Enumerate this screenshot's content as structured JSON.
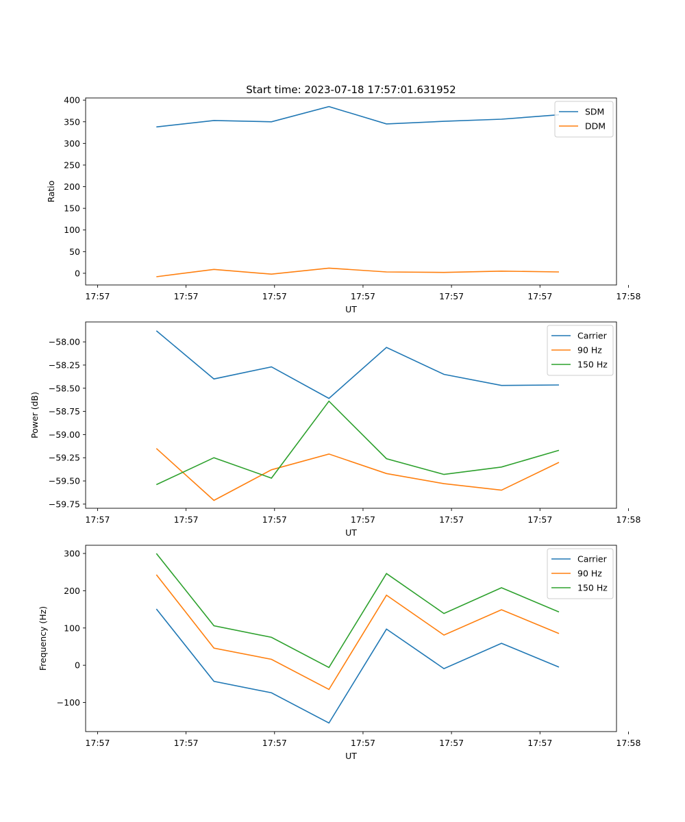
{
  "figure_title": "Start time: 2023-07-18 17:57:01.631952",
  "chart_data": [
    {
      "type": "line",
      "title": "Start time: 2023-07-18 17:57:01.631952",
      "xlabel": "UT",
      "ylabel": "Ratio",
      "x": [
        0.8,
        1.45,
        2.1,
        2.75,
        3.4,
        4.05,
        4.7,
        5.35
      ],
      "xlim": [
        0,
        6.0
      ],
      "xticks": [
        0.135,
        1.135,
        2.135,
        3.135,
        4.135,
        5.135,
        6.135
      ],
      "xtick_labels": [
        "17:57",
        "17:57",
        "17:57",
        "17:57",
        "17:57",
        "17:57",
        "17:58"
      ],
      "ylim": [
        -27,
        405
      ],
      "yticks": [
        0,
        50,
        100,
        150,
        200,
        250,
        300,
        350,
        400
      ],
      "ytick_labels": [
        "0",
        "50",
        "100",
        "150",
        "200",
        "250",
        "300",
        "350",
        "400"
      ],
      "legend": "top-right",
      "series": [
        {
          "name": "SDM",
          "color": "#1f77b4",
          "values": [
            338,
            353,
            350,
            385,
            345,
            351,
            356,
            366
          ]
        },
        {
          "name": "DDM",
          "color": "#ff7f0e",
          "values": [
            -8,
            9,
            -2,
            12,
            3,
            2,
            5,
            3
          ]
        }
      ]
    },
    {
      "type": "line",
      "title": "",
      "xlabel": "UT",
      "ylabel": "Power (dB)",
      "x": [
        0.8,
        1.45,
        2.1,
        2.75,
        3.4,
        4.05,
        4.7,
        5.35
      ],
      "xlim": [
        0,
        6.0
      ],
      "xticks": [
        0.135,
        1.135,
        2.135,
        3.135,
        4.135,
        5.135,
        6.135
      ],
      "xtick_labels": [
        "17:57",
        "17:57",
        "17:57",
        "17:57",
        "17:57",
        "17:57",
        "17:58"
      ],
      "ylim": [
        -59.795,
        -57.785
      ],
      "yticks": [
        -58.0,
        -58.25,
        -58.5,
        -58.75,
        -59.0,
        -59.25,
        -59.5,
        -59.75
      ],
      "ytick_labels": [
        "−58.00",
        "−58.25",
        "−58.50",
        "−58.75",
        "−59.00",
        "−59.25",
        "−59.50",
        "−59.75"
      ],
      "legend": "top-right",
      "series": [
        {
          "name": "Carrier",
          "color": "#1f77b4",
          "values": [
            -57.88,
            -58.4,
            -58.27,
            -58.61,
            -58.06,
            -58.35,
            -58.47,
            -58.465
          ]
        },
        {
          "name": "90 Hz",
          "color": "#ff7f0e",
          "values": [
            -59.15,
            -59.71,
            -59.38,
            -59.21,
            -59.42,
            -59.53,
            -59.6,
            -59.3
          ]
        },
        {
          "name": "150 Hz",
          "color": "#2ca02c",
          "values": [
            -59.54,
            -59.25,
            -59.47,
            -58.64,
            -59.26,
            -59.43,
            -59.35,
            -59.17
          ]
        }
      ]
    },
    {
      "type": "line",
      "title": "",
      "xlabel": "UT",
      "ylabel": "Frequency (Hz)",
      "x": [
        0.8,
        1.45,
        2.1,
        2.75,
        3.4,
        4.05,
        4.7,
        5.35
      ],
      "xlim": [
        0,
        6.0
      ],
      "xticks": [
        0.135,
        1.135,
        2.135,
        3.135,
        4.135,
        5.135,
        6.135
      ],
      "xtick_labels": [
        "17:57",
        "17:57",
        "17:57",
        "17:57",
        "17:57",
        "17:57",
        "17:58"
      ],
      "ylim": [
        -178,
        322
      ],
      "yticks": [
        -100,
        0,
        100,
        200,
        300
      ],
      "ytick_labels": [
        "−100",
        "0",
        "100",
        "200",
        "300"
      ],
      "legend": "top-right",
      "series": [
        {
          "name": "Carrier",
          "color": "#1f77b4",
          "values": [
            151,
            -43,
            -74,
            -155,
            97,
            -9,
            59,
            -5
          ]
        },
        {
          "name": "90 Hz",
          "color": "#ff7f0e",
          "values": [
            243,
            46,
            16,
            -65,
            188,
            81,
            149,
            85
          ]
        },
        {
          "name": "150 Hz",
          "color": "#2ca02c",
          "values": [
            300,
            106,
            75,
            -6,
            246,
            139,
            208,
            143
          ]
        }
      ]
    }
  ]
}
